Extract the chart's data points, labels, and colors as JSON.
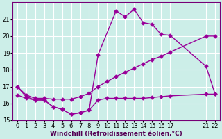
{
  "background_color": "#cceee8",
  "grid_color": "#ffffff",
  "line_color": "#990099",
  "xlim": [
    -0.5,
    22.5
  ],
  "ylim": [
    15,
    22
  ],
  "xtick_positions": [
    0,
    1,
    2,
    3,
    4,
    5,
    6,
    7,
    8,
    9,
    10,
    11,
    12,
    13,
    14,
    15,
    16,
    17,
    21,
    22
  ],
  "xtick_labels": [
    "0",
    "1",
    "2",
    "3",
    "4",
    "5",
    "6",
    "7",
    "8",
    "9",
    "10",
    "11",
    "12",
    "13",
    "14",
    "15",
    "16",
    "17",
    "21",
    "22"
  ],
  "yticks": [
    15,
    16,
    17,
    18,
    19,
    20,
    21
  ],
  "xlabel": "Windchill (Refroidissement éolien,°C)",
  "line1_x": [
    0,
    1,
    2,
    3,
    4,
    5,
    6,
    7,
    8,
    9,
    10,
    11,
    12,
    13,
    14,
    15,
    16,
    17,
    21,
    22
  ],
  "line1_y": [
    16.5,
    16.3,
    16.2,
    16.2,
    15.8,
    15.65,
    15.35,
    15.45,
    15.6,
    16.2,
    16.3,
    16.3,
    16.3,
    16.3,
    16.3,
    16.35,
    16.4,
    16.45,
    16.55,
    16.55
  ],
  "line2_x": [
    0,
    1,
    2,
    3,
    4,
    5,
    6,
    7,
    8,
    9,
    10,
    11,
    12,
    13,
    14,
    15,
    16,
    17,
    21,
    22
  ],
  "line2_y": [
    17.0,
    16.5,
    16.3,
    16.3,
    16.25,
    16.25,
    16.25,
    16.4,
    16.6,
    17.0,
    17.3,
    17.6,
    17.85,
    18.1,
    18.35,
    18.6,
    18.8,
    19.05,
    20.0,
    20.0
  ],
  "line3_x": [
    0,
    1,
    2,
    3,
    4,
    5,
    6,
    7,
    8,
    9,
    11,
    12,
    13,
    14,
    15,
    16,
    17,
    21,
    22
  ],
  "line3_y": [
    17.0,
    16.4,
    16.2,
    16.2,
    15.8,
    15.65,
    15.35,
    15.45,
    15.6,
    18.9,
    21.5,
    21.15,
    21.6,
    20.8,
    20.7,
    20.1,
    20.05,
    18.2,
    16.55
  ],
  "marker": "D",
  "markersize": 2.5,
  "linewidth": 1.0,
  "xlabel_fontsize": 6.5,
  "tick_fontsize": 6.0
}
